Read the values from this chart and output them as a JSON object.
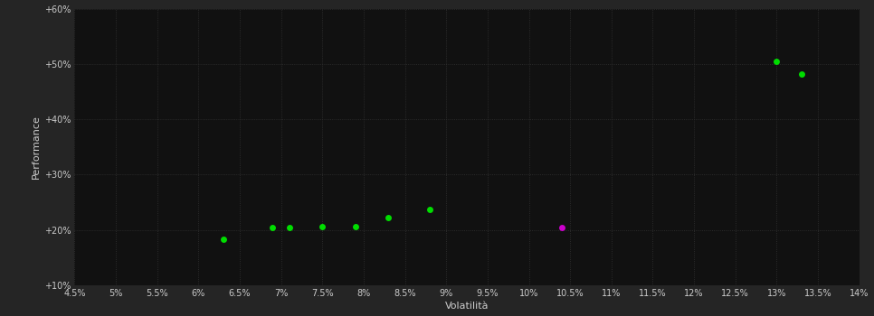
{
  "background_color": "#252525",
  "plot_bg_color": "#111111",
  "grid_color": "#333333",
  "text_color": "#cccccc",
  "xlabel": "Volatilità",
  "ylabel": "Performance",
  "xlim": [
    0.045,
    0.14
  ],
  "ylim": [
    0.1,
    0.6
  ],
  "xticks": [
    0.045,
    0.05,
    0.055,
    0.06,
    0.065,
    0.07,
    0.075,
    0.08,
    0.085,
    0.09,
    0.095,
    0.1,
    0.105,
    0.11,
    0.115,
    0.12,
    0.125,
    0.13,
    0.135,
    0.14
  ],
  "yticks": [
    0.1,
    0.2,
    0.3,
    0.4,
    0.5,
    0.6
  ],
  "green_points": [
    [
      0.063,
      0.183
    ],
    [
      0.069,
      0.204
    ],
    [
      0.071,
      0.204
    ],
    [
      0.075,
      0.207
    ],
    [
      0.079,
      0.207
    ],
    [
      0.083,
      0.223
    ],
    [
      0.088,
      0.237
    ],
    [
      0.13,
      0.505
    ],
    [
      0.133,
      0.482
    ]
  ],
  "magenta_points": [
    [
      0.104,
      0.204
    ]
  ],
  "green_color": "#00dd00",
  "magenta_color": "#cc00cc",
  "point_size": 25
}
